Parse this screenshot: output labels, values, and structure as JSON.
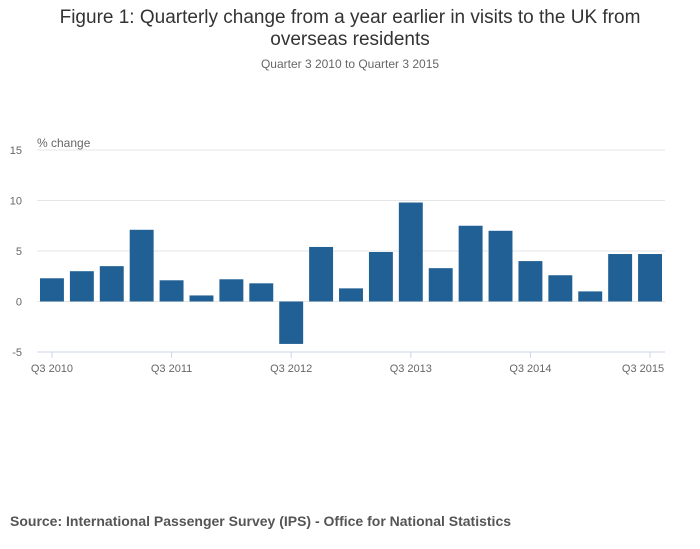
{
  "chart_data": {
    "type": "bar",
    "title": "Figure 1: Quarterly change from a year earlier in visits to the UK from overseas residents",
    "subtitle": "Quarter 3 2010 to Quarter 3 2015",
    "ylabel": "% change",
    "ylim": [
      -5,
      15
    ],
    "yticks": [
      -5,
      0,
      5,
      10,
      15
    ],
    "grid": true,
    "categories": [
      "Q3 2010",
      "Q4 2010",
      "Q1 2011",
      "Q2 2011",
      "Q3 2011",
      "Q4 2011",
      "Q1 2012",
      "Q2 2012",
      "Q3 2012",
      "Q4 2012",
      "Q1 2013",
      "Q2 2013",
      "Q3 2013",
      "Q4 2013",
      "Q1 2014",
      "Q2 2014",
      "Q3 2014",
      "Q4 2014",
      "Q1 2015",
      "Q2 2015",
      "Q3 2015"
    ],
    "xtick_labels": [
      "Q3 2010",
      "Q3 2011",
      "Q3 2012",
      "Q3 2013",
      "Q3 2014",
      "Q3 2015"
    ],
    "values": [
      2.3,
      3.0,
      3.5,
      7.1,
      2.1,
      0.6,
      2.2,
      1.8,
      -4.2,
      5.4,
      1.3,
      4.9,
      9.8,
      3.3,
      7.5,
      7.0,
      4.0,
      2.6,
      1.0,
      4.7,
      4.7
    ],
    "bar_color": "#206095"
  },
  "source": "Source: International Passenger Survey (IPS) - Office for National Statistics"
}
